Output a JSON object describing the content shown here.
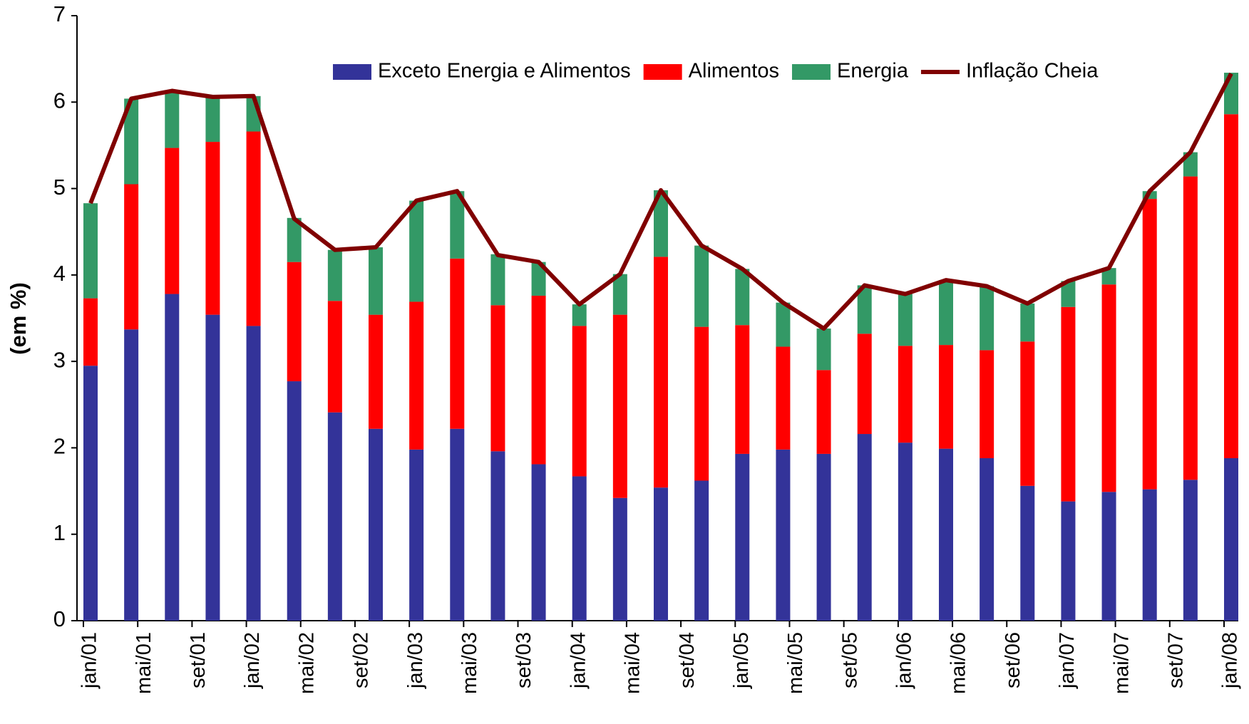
{
  "chart_data": {
    "type": "bar",
    "stacked": true,
    "y_label": "(em %)",
    "x": [
      "2001-01",
      "2001-04",
      "2001-07",
      "2001-10",
      "2002-01",
      "2002-04",
      "2002-07",
      "2002-10",
      "2003-01",
      "2003-04",
      "2003-07",
      "2003-10",
      "2004-01",
      "2004-04",
      "2004-07",
      "2004-10",
      "2005-01",
      "2005-04",
      "2005-07",
      "2005-10",
      "2006-01",
      "2006-04",
      "2006-07",
      "2006-10",
      "2007-01",
      "2007-04",
      "2007-07",
      "2007-10",
      "2008-01"
    ],
    "series": [
      {
        "name": "Exceto Energia e Alimentos",
        "color": "#333399",
        "type": "bar",
        "values": [
          2.95,
          3.37,
          3.78,
          3.54,
          3.41,
          2.77,
          2.41,
          2.22,
          1.98,
          2.22,
          1.96,
          1.81,
          1.67,
          1.42,
          1.54,
          1.62,
          1.93,
          1.98,
          1.93,
          2.16,
          2.06,
          1.99,
          1.88,
          1.56,
          1.38,
          1.49,
          1.52,
          1.63,
          1.88
        ]
      },
      {
        "name": "Alimentos",
        "color": "#ff0000",
        "type": "bar",
        "values": [
          0.78,
          1.68,
          1.69,
          2.0,
          2.25,
          1.38,
          1.29,
          1.32,
          1.71,
          1.97,
          1.69,
          1.95,
          1.74,
          2.12,
          2.67,
          1.78,
          1.49,
          1.19,
          0.97,
          1.16,
          1.12,
          1.2,
          1.25,
          1.67,
          2.25,
          2.4,
          3.36,
          3.51,
          3.98
        ]
      },
      {
        "name": "Energia",
        "color": "#339966",
        "type": "bar",
        "values": [
          1.1,
          0.99,
          0.66,
          0.52,
          0.41,
          0.51,
          0.59,
          0.78,
          1.17,
          0.78,
          0.59,
          0.39,
          0.25,
          0.47,
          0.77,
          0.94,
          0.65,
          0.51,
          0.48,
          0.56,
          0.6,
          0.75,
          0.74,
          0.44,
          0.3,
          0.19,
          0.09,
          0.28,
          0.48
        ]
      },
      {
        "name": "Inflação Cheia",
        "color": "#800000",
        "type": "line",
        "values": [
          4.83,
          6.04,
          6.13,
          6.06,
          6.07,
          4.65,
          4.29,
          4.32,
          4.86,
          4.97,
          4.23,
          4.15,
          3.66,
          4.01,
          4.98,
          4.34,
          4.07,
          3.68,
          3.38,
          3.88,
          3.78,
          3.94,
          3.87,
          3.67,
          3.93,
          4.08,
          4.97,
          5.42,
          6.33
        ]
      }
    ],
    "xlim": [
      "2001-01",
      "2008-01"
    ],
    "xticks": [
      {
        "value": "2001-01",
        "label": "jan/01"
      },
      {
        "value": "2001-05",
        "label": "mai/01"
      },
      {
        "value": "2001-09",
        "label": "set/01"
      },
      {
        "value": "2002-01",
        "label": "jan/02"
      },
      {
        "value": "2002-05",
        "label": "mai/02"
      },
      {
        "value": "2002-09",
        "label": "set/02"
      },
      {
        "value": "2003-01",
        "label": "jan/03"
      },
      {
        "value": "2003-05",
        "label": "mai/03"
      },
      {
        "value": "2003-09",
        "label": "set/03"
      },
      {
        "value": "2004-01",
        "label": "jan/04"
      },
      {
        "value": "2004-05",
        "label": "mai/04"
      },
      {
        "value": "2004-09",
        "label": "set/04"
      },
      {
        "value": "2005-01",
        "label": "jan/05"
      },
      {
        "value": "2005-05",
        "label": "mai/05"
      },
      {
        "value": "2005-09",
        "label": "set/05"
      },
      {
        "value": "2006-01",
        "label": "jan/06"
      },
      {
        "value": "2006-05",
        "label": "mai/06"
      },
      {
        "value": "2006-09",
        "label": "set/06"
      },
      {
        "value": "2007-01",
        "label": "jan/07"
      },
      {
        "value": "2007-05",
        "label": "mai/07"
      },
      {
        "value": "2007-09",
        "label": "set/07"
      },
      {
        "value": "2008-01",
        "label": "jan/08"
      }
    ],
    "ylim": [
      0,
      7
    ],
    "yticks": [
      0,
      1,
      2,
      3,
      4,
      5,
      6,
      7
    ],
    "grid": false,
    "legend": "top"
  }
}
